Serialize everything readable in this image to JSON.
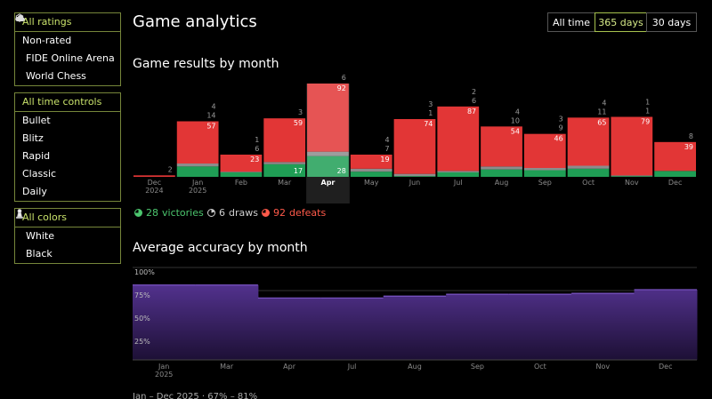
{
  "header": {
    "title": "Game analytics",
    "periods": [
      "All time",
      "365 days",
      "30 days"
    ],
    "selected_period": 1
  },
  "sidebar": {
    "groups": [
      {
        "items": [
          "All ratings",
          "Non-rated",
          "FIDE Online Arena",
          "World Chess"
        ],
        "selected": 0
      },
      {
        "items": [
          "All time controls",
          "Bullet",
          "Blitz",
          "Rapid",
          "Classic",
          "Daily"
        ],
        "selected": 0
      },
      {
        "items": [
          "All colors",
          "White",
          "Black"
        ],
        "selected": 0
      }
    ]
  },
  "chart_data": [
    {
      "type": "bar",
      "stacked": true,
      "title": "Game results by month",
      "categories": [
        "Dec\n2024",
        "Jan\n2025",
        "Feb",
        "Mar",
        "Apr",
        "May",
        "Jun",
        "Jul",
        "Aug",
        "Sep",
        "Oct",
        "Nov",
        "Dec"
      ],
      "selected": 4,
      "series": [
        {
          "name": "victories",
          "color": "#1f9e55",
          "values": [
            null,
            14,
            6,
            17,
            28,
            7,
            1,
            6,
            10,
            9,
            11,
            1,
            8
          ]
        },
        {
          "name": "draws",
          "color": "#8c8c8c",
          "values": [
            null,
            4,
            1,
            3,
            6,
            4,
            3,
            2,
            4,
            3,
            4,
            1,
            null
          ]
        },
        {
          "name": "defeats",
          "color": "#e23636",
          "values": [
            2,
            57,
            23,
            59,
            92,
            19,
            74,
            87,
            54,
            46,
            65,
            79,
            39
          ]
        }
      ]
    },
    {
      "type": "area",
      "step": true,
      "title": "Average accuracy by month",
      "categories": [
        "Jan\n2025",
        "Mar",
        "Apr",
        "Jul",
        "Aug",
        "Sep",
        "Oct",
        "Nov",
        "Dec"
      ],
      "values": [
        81,
        81,
        67,
        67,
        69,
        71,
        71,
        72,
        76
      ],
      "color": "#5f3aa3",
      "ylim": [
        0,
        100
      ],
      "yticks": [
        {
          "value": 100,
          "label": "100%"
        },
        {
          "value": 75,
          "label": "75%"
        },
        {
          "value": 50,
          "label": "50%"
        },
        {
          "value": 25,
          "label": "25%"
        }
      ],
      "grid": true,
      "footer": "Jan – Dec 2025 · 67% – 81%"
    }
  ]
}
